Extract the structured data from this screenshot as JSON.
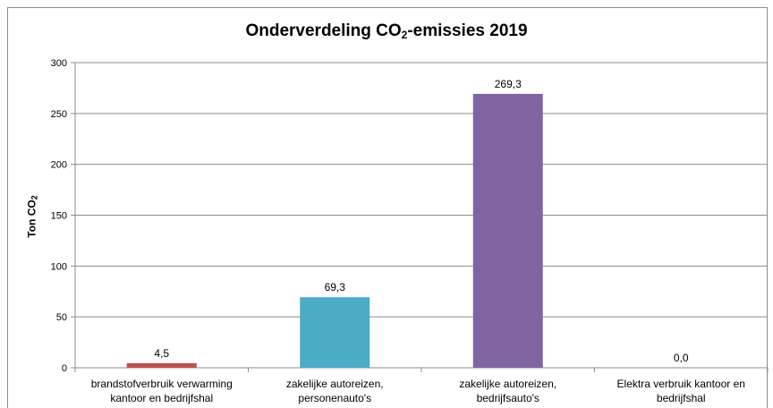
{
  "title": {
    "main": "Onderverdeling CO",
    "sub": "2",
    "suffix": "-emissies 2019"
  },
  "yaxis_title": {
    "main": "Ton CO",
    "sub": "2"
  },
  "chart_data": {
    "type": "bar",
    "title": "Onderverdeling CO2-emissies 2019",
    "ylabel": "Ton CO2",
    "xlabel": "",
    "ylim": [
      0,
      300
    ],
    "yticks": [
      "0",
      "50",
      "100",
      "150",
      "200",
      "250",
      "300"
    ],
    "grid": true,
    "legend": "none",
    "categories": [
      [
        "brandstofverbruik verwarming",
        "kantoor en bedrijfshal"
      ],
      [
        "zakelijke autoreizen,",
        "personenauto's"
      ],
      [
        "zakelijke autoreizen,",
        "bedrijfsauto's"
      ],
      [
        "Elektra verbruik kantoor en",
        "bedrijfshal"
      ]
    ],
    "values": [
      4.5,
      69.3,
      269.3,
      0.0
    ],
    "data_labels": [
      "4,5",
      "69,3",
      "269,3",
      "0,0"
    ],
    "colors": [
      "#c0504d",
      "#4bacc6",
      "#8064a2",
      "#9bbb59"
    ]
  }
}
